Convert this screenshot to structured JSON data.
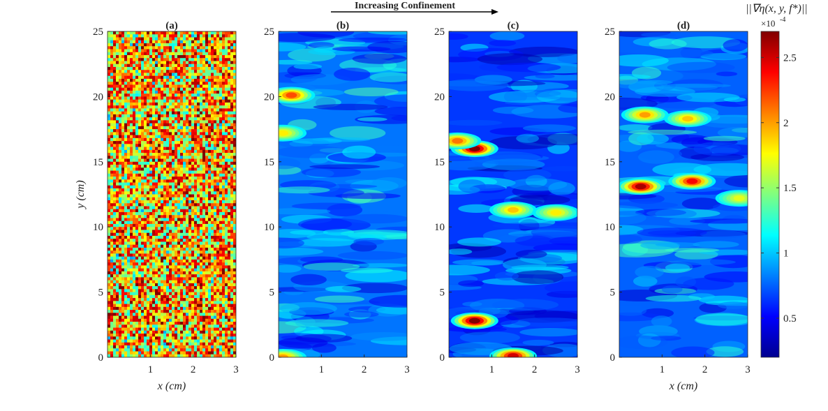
{
  "figure": {
    "banner_text": "Increasing Confinement",
    "colorbar_title": "||∇η(x, y, f*)||",
    "colorbar_exponent_base": "×10",
    "colorbar_exponent_power": "-4"
  },
  "chart_data": [
    {
      "type": "heatmap",
      "title": "(a)",
      "xlabel": "x  (cm)",
      "ylabel": "y  (cm)",
      "xlim": [
        0,
        3
      ],
      "ylim": [
        0,
        25
      ],
      "xticks": [
        "1",
        "2",
        "3"
      ],
      "yticks": [
        "0",
        "5",
        "10",
        "15",
        "20",
        "25"
      ],
      "description_level": "high",
      "mean_value_e-4": 2.0,
      "hotspots": []
    },
    {
      "type": "heatmap",
      "title": "(b)",
      "xlabel": "",
      "ylabel": "",
      "xlim": [
        0,
        3
      ],
      "ylim": [
        0,
        25
      ],
      "xticks": [
        "1",
        "2",
        "3"
      ],
      "yticks": [
        "0",
        "5",
        "10",
        "15",
        "20",
        "25"
      ],
      "mean_value_e-4": 0.8,
      "hotspots": [
        {
          "x": 0.3,
          "y": 20.1,
          "value_e-4": 2.2
        },
        {
          "x": 0.1,
          "y": 17.2,
          "value_e-4": 1.8
        },
        {
          "x": 0.1,
          "y": 0.0,
          "value_e-4": 2.0
        }
      ]
    },
    {
      "type": "heatmap",
      "title": "(c)",
      "xlabel": "",
      "ylabel": "",
      "xlim": [
        0,
        3
      ],
      "ylim": [
        0,
        25
      ],
      "xticks": [
        "1",
        "2",
        "3"
      ],
      "yticks": [
        "0",
        "5",
        "10",
        "15",
        "20",
        "25"
      ],
      "mean_value_e-4": 0.65,
      "hotspots": [
        {
          "x": 0.6,
          "y": 16.0,
          "value_e-4": 2.7
        },
        {
          "x": 0.2,
          "y": 16.6,
          "value_e-4": 2.1
        },
        {
          "x": 0.6,
          "y": 2.8,
          "value_e-4": 2.7
        },
        {
          "x": 1.5,
          "y": 0.1,
          "value_e-4": 2.5
        },
        {
          "x": 1.5,
          "y": 11.3,
          "value_e-4": 1.9
        },
        {
          "x": 2.5,
          "y": 11.1,
          "value_e-4": 1.8
        }
      ]
    },
    {
      "type": "heatmap",
      "title": "(d)",
      "xlabel": "x  (cm)",
      "ylabel": "",
      "xlim": [
        0,
        3
      ],
      "ylim": [
        0,
        25
      ],
      "xticks": [
        "1",
        "2",
        "3"
      ],
      "yticks": [
        "0",
        "5",
        "10",
        "15",
        "20",
        "25"
      ],
      "mean_value_e-4": 0.75,
      "hotspots": [
        {
          "x": 0.5,
          "y": 13.1,
          "value_e-4": 2.6
        },
        {
          "x": 1.7,
          "y": 13.5,
          "value_e-4": 2.4
        },
        {
          "x": 0.6,
          "y": 18.6,
          "value_e-4": 2.0
        },
        {
          "x": 1.6,
          "y": 18.3,
          "value_e-4": 1.9
        },
        {
          "x": 2.8,
          "y": 12.2,
          "value_e-4": 1.7
        }
      ]
    }
  ],
  "colorbar": {
    "min_e-4": 0.2,
    "max_e-4": 2.7,
    "ticks": [
      "0.5",
      "1",
      "1.5",
      "2",
      "2.5"
    ],
    "colormap": "jet",
    "colors": [
      "#00008f",
      "#0000ff",
      "#00ffff",
      "#ffff00",
      "#ff0000",
      "#800000"
    ]
  }
}
